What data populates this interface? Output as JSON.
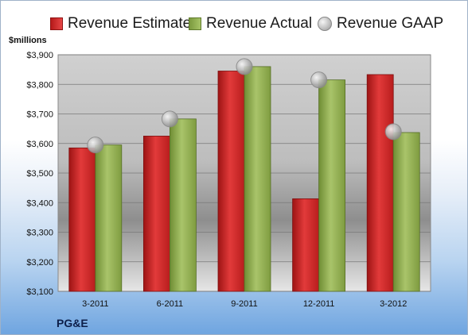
{
  "chart_data": {
    "type": "bar",
    "categories": [
      "3-2011",
      "6-2011",
      "9-2011",
      "12-2011",
      "3-2012"
    ],
    "series": [
      {
        "name": "Revenue Estimate",
        "type": "bar",
        "color": "#d42a2a",
        "values": [
          3585,
          3625,
          3845,
          3413,
          3833
        ]
      },
      {
        "name": "Revenue Actual",
        "type": "bar",
        "color": "#8cab4f",
        "values": [
          3595,
          3683,
          3860,
          3815,
          3637
        ]
      },
      {
        "name": "Revenue GAAP",
        "type": "scatter",
        "color": "#b8b8b8",
        "values": [
          3595,
          3683,
          3860,
          3815,
          3640
        ]
      }
    ],
    "ylabel": "$millions",
    "ylim": [
      3100,
      3900
    ],
    "yticks": [
      3100,
      3200,
      3300,
      3400,
      3500,
      3600,
      3700,
      3800,
      3900
    ],
    "ytick_labels": [
      "$3,100",
      "$3,200",
      "$3,300",
      "$3,400",
      "$3,500",
      "$3,600",
      "$3,700",
      "$3,800",
      "$3,900"
    ],
    "grid": true,
    "legend": "top"
  },
  "company": "PG&E"
}
